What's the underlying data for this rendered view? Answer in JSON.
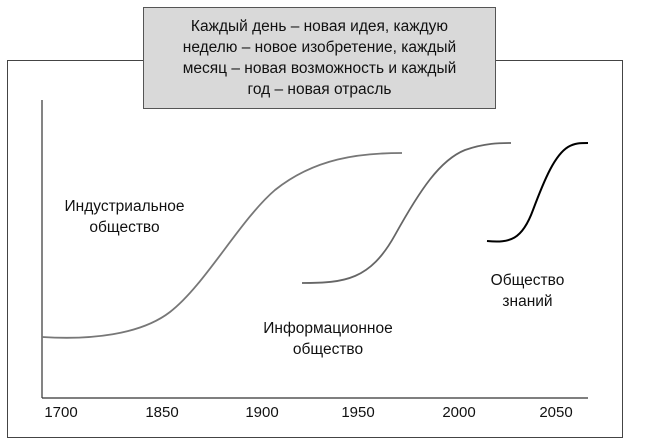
{
  "callout": {
    "text": "Каждый день – новая идея, каждую\nнеделю – новое изобретение, каждый\nмесяц – новая возможность и каждый\nгод – новая отрасль"
  },
  "curves": [
    {
      "label": "Индустриальное\nобщество"
    },
    {
      "label": "Информационное\nобщество"
    },
    {
      "label": "Общество\nзнаний"
    }
  ],
  "axis": {
    "ticks": [
      "1700",
      "1850",
      "1900",
      "1950",
      "2000",
      "2050"
    ]
  }
}
